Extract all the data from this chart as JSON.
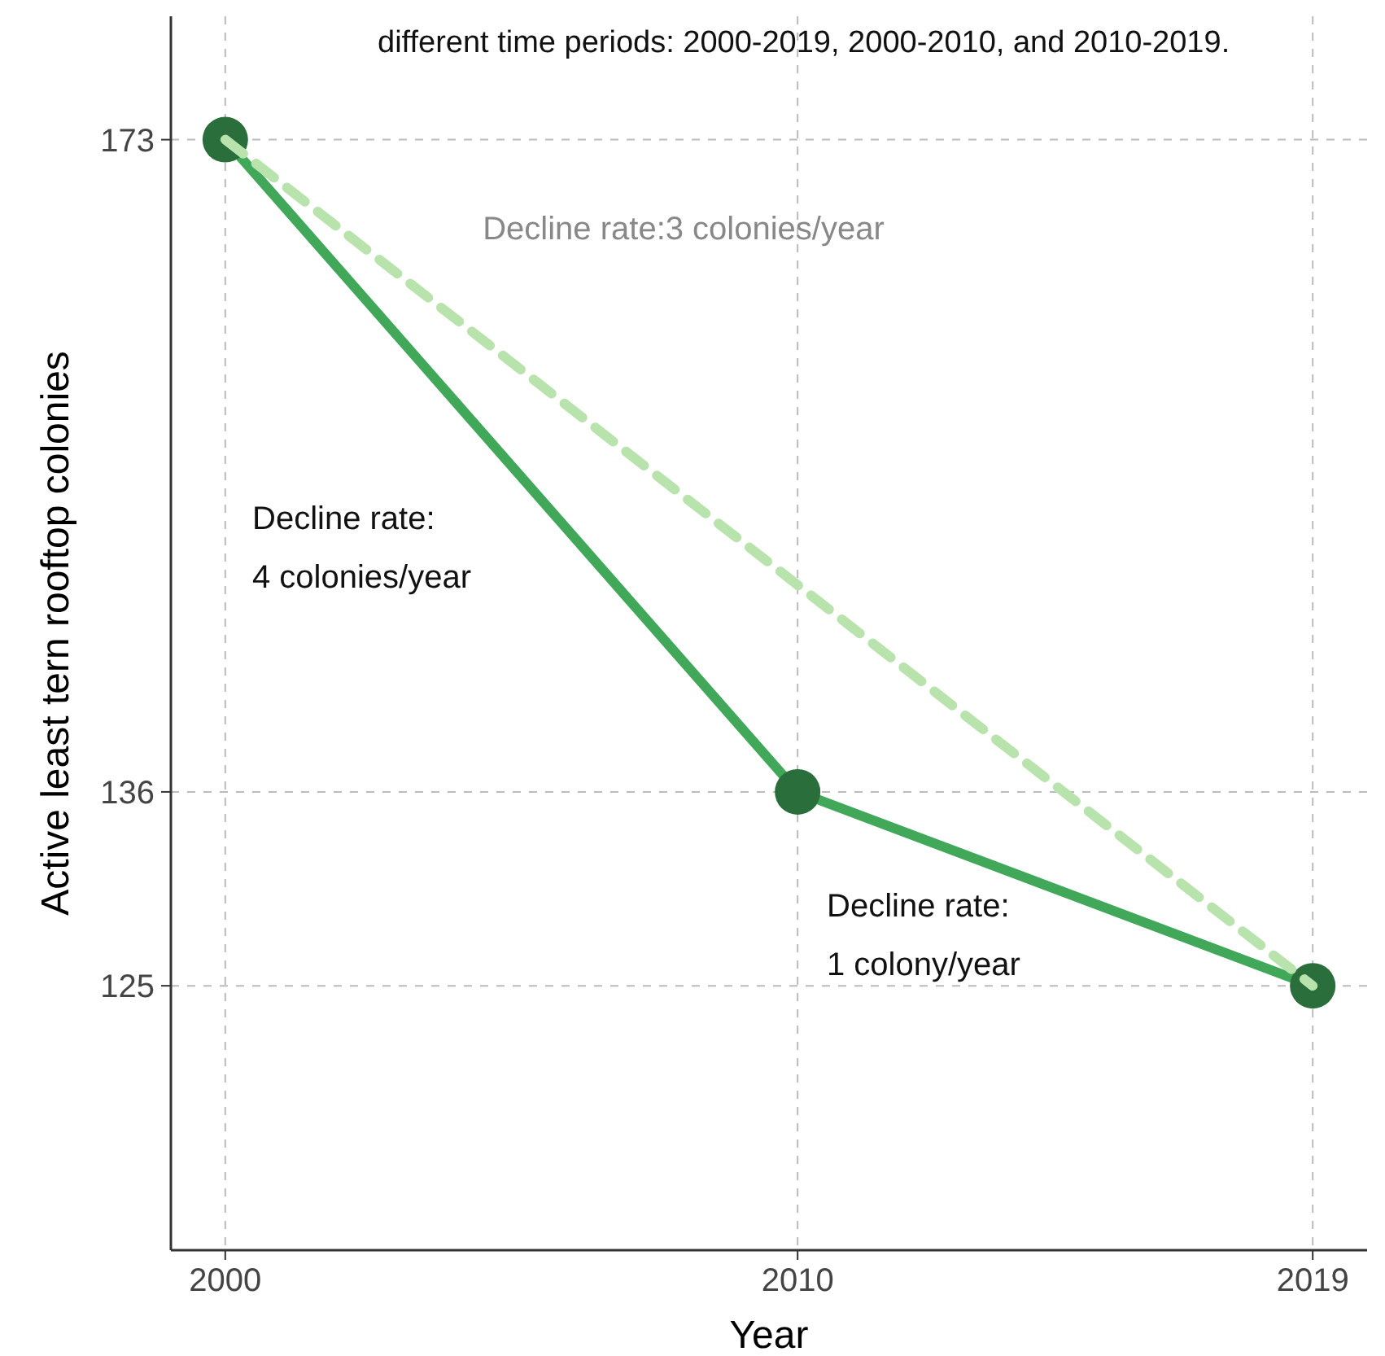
{
  "chart_data": {
    "type": "line",
    "subtitle": "different time periods: 2000-2019, 2000-2010, and 2010-2019.",
    "xlabel": "Year",
    "ylabel": "Active least tern rooftop colonies",
    "xlim": [
      1999.05,
      2019.95
    ],
    "xticks": [
      2000,
      2010,
      2019
    ],
    "ylim": [
      110,
      180
    ],
    "yticks": [
      125,
      136,
      173
    ],
    "grid": true,
    "series": [
      {
        "x": [
          2000,
          2010,
          2019
        ],
        "values": [
          173,
          136,
          125
        ],
        "color": "#41a85a",
        "marker": "circle",
        "line_style": "solid"
      },
      {
        "x": [
          2000,
          2019
        ],
        "values": [
          173,
          125
        ],
        "color": "#b9e3ad",
        "marker": "none",
        "line_style": "dashed"
      }
    ],
    "annotations": [
      "Decline rate:3 colonies/year",
      "Decline rate:\n4 colonies/year",
      "Decline rate:\n1 colony/year"
    ]
  }
}
